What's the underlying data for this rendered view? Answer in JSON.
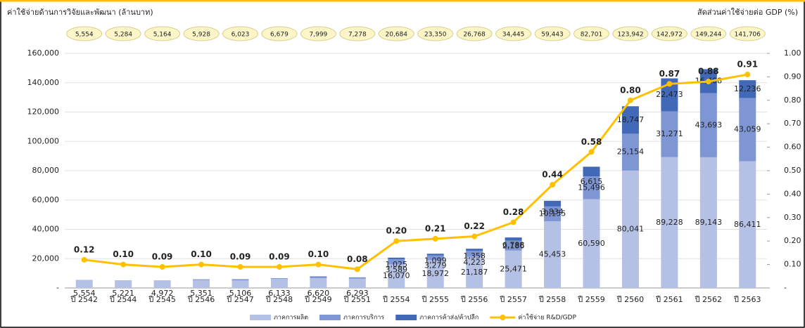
{
  "chart_data": {
    "type": "bar-line",
    "title": "ค่าใช้จ่ายด้านการวิจัยและพัฒนา (ล้านบาท)",
    "y2_title": "สัดส่วนค่าใช้จ่ายต่อ GDP (%)",
    "categories": [
      "ปี 2542",
      "ปี 2544",
      "ปี 2545",
      "ปี 2546",
      "ปี 2547",
      "ปี 2548",
      "ปี 2549",
      "ปี 2551",
      "ปี 2554",
      "ปี 2555",
      "ปี 2556",
      "ปี 2557",
      "ปี 2558",
      "ปี 2559",
      "ปี 2560",
      "ปี 2561",
      "ปี 2562",
      "ปี 2563"
    ],
    "totals": {
      "values": [
        5554,
        5284,
        5164,
        5928,
        6023,
        6679,
        7999,
        7278,
        20684,
        23350,
        26768,
        34445,
        59443,
        82701,
        123942,
        142972,
        149244,
        141706
      ],
      "value_labels": [
        "5,554",
        "5,284",
        "5,164",
        "5,928",
        "6,023",
        "6,679",
        "7,999",
        "7,278",
        "20,684",
        "23,350",
        "26,768",
        "34,445",
        "59,443",
        "82,701",
        "123,942",
        "142,972",
        "149,244",
        "141,706"
      ]
    },
    "series": [
      {
        "name": "ภาคการผลิต",
        "color": "#b4c0e4",
        "stacked": true,
        "values": [
          5554,
          5221,
          4972,
          5351,
          5106,
          6133,
          6620,
          6293,
          16070,
          18972,
          21187,
          25471,
          45453,
          60590,
          80041,
          89228,
          89143,
          86411
        ],
        "value_labels": [
          "5,554",
          "5,221",
          "4,972",
          "5,351",
          "5,106",
          "6,133",
          "6,620",
          "6,293",
          "16,070",
          "18,972",
          "21,187",
          "25,471",
          "45,453",
          "60,590",
          "80,041",
          "89,228",
          "89,143",
          "86,411"
        ]
      },
      {
        "name": "ภาคการบริการ",
        "color": "#7f96d4",
        "stacked": true,
        "values": [
          0,
          63,
          192,
          577,
          917,
          546,
          1379,
          985,
          3589,
          3279,
          4223,
          6788,
          10155,
          15496,
          25154,
          31271,
          43693,
          43059
        ],
        "value_labels": [
          null,
          null,
          null,
          null,
          null,
          null,
          null,
          null,
          "3,589",
          "3,279",
          "4,223",
          "6,788",
          "10,155",
          "15,496",
          "25,154",
          "31,271",
          "43,693",
          "43,059"
        ]
      },
      {
        "name": "ภาคการค้าส่ง/ค้าปลีก",
        "color": "#4169b8",
        "stacked": true,
        "values": [
          0,
          0,
          0,
          0,
          0,
          0,
          0,
          0,
          1025,
          1099,
          1358,
          2186,
          3834,
          6615,
          18747,
          22473,
          16408,
          12236
        ],
        "value_labels": [
          null,
          null,
          null,
          null,
          null,
          null,
          null,
          null,
          "1,025",
          "1,099",
          "1,358",
          "2,186",
          "3,834",
          "6,615",
          "18,747",
          "22,473",
          "16,408",
          "12,236"
        ]
      },
      {
        "name": "ค่าใช้จ่าย R&D/GDP",
        "color": "#ffc000",
        "axis": "y2",
        "values": [
          0.12,
          0.1,
          0.09,
          0.1,
          0.09,
          0.09,
          0.1,
          0.08,
          0.2,
          0.21,
          0.22,
          0.28,
          0.44,
          0.58,
          0.8,
          0.87,
          0.88,
          0.91
        ],
        "value_labels": [
          "0.12",
          "0.10",
          "0.09",
          "0.10",
          "0.09",
          "0.09",
          "0.10",
          "0.08",
          "0.20",
          "0.21",
          "0.22",
          "0.28",
          "0.44",
          "0.58",
          "0.80",
          "0.87",
          "0.88",
          "0.91"
        ]
      }
    ],
    "ylim": [
      0,
      160000
    ],
    "yticks": [
      {
        "value": 0,
        "label": "-"
      },
      {
        "value": 20000,
        "label": "20,000"
      },
      {
        "value": 40000,
        "label": "40,000"
      },
      {
        "value": 60000,
        "label": "60,000"
      },
      {
        "value": 80000,
        "label": "80,000"
      },
      {
        "value": 100000,
        "label": "100,000"
      },
      {
        "value": 120000,
        "label": "120,000"
      },
      {
        "value": 140000,
        "label": "140,000"
      },
      {
        "value": 160000,
        "label": "160,000"
      }
    ],
    "y2lim": [
      0,
      1
    ],
    "y2ticks": [
      {
        "value": 0,
        "label": "-"
      },
      {
        "value": 0.1,
        "label": "0.10"
      },
      {
        "value": 0.2,
        "label": "0.20"
      },
      {
        "value": 0.3,
        "label": "0.30"
      },
      {
        "value": 0.4,
        "label": "0.40"
      },
      {
        "value": 0.5,
        "label": "0.50"
      },
      {
        "value": 0.6,
        "label": "0.60"
      },
      {
        "value": 0.7,
        "label": "0.70"
      },
      {
        "value": 0.8,
        "label": "0.80"
      },
      {
        "value": 0.9,
        "label": "0.90"
      },
      {
        "value": 1,
        "label": "1.00"
      }
    ],
    "grid": true
  }
}
